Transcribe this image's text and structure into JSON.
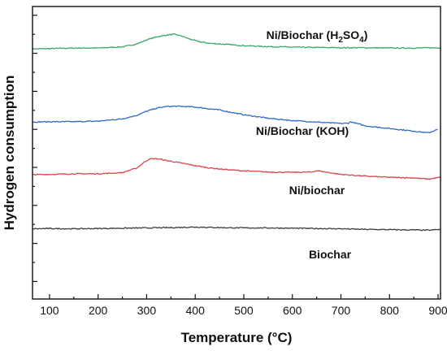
{
  "chart_data": {
    "type": "line",
    "xlabel": "Temperature (°C)",
    "ylabel": "Hydrogen consumption",
    "xlim": [
      65,
      905
    ],
    "ylim": [
      0,
      100
    ],
    "x_ticks": [
      100,
      200,
      300,
      400,
      500,
      600,
      700,
      800,
      900
    ],
    "y_ticks": [
      6,
      19,
      32,
      45,
      58,
      71,
      84,
      97
    ],
    "y_tick_labels_shown": false,
    "grid": false,
    "legend": "none",
    "series": [
      {
        "name": "Ni/Biochar (H2SO4)",
        "label_parts": [
          "Ni/Biochar (H",
          "2",
          "SO",
          "4",
          ")"
        ],
        "color": "#3aa86a",
        "x": [
          65,
          100,
          150,
          200,
          250,
          280,
          300,
          320,
          340,
          355,
          370,
          390,
          410,
          430,
          460,
          500,
          550,
          600,
          650,
          700,
          750,
          800,
          850,
          905
        ],
        "y": [
          85.5,
          85.6,
          85.8,
          85.8,
          86.2,
          87.2,
          88.6,
          89.6,
          90.2,
          90.5,
          90.0,
          88.8,
          87.9,
          87.4,
          87.1,
          86.6,
          86.3,
          86.1,
          86.0,
          85.9,
          85.9,
          85.8,
          85.8,
          85.9
        ]
      },
      {
        "name": "Ni/Biochar (KOH)",
        "label_parts": [
          "Ni/Biochar (KOH)"
        ],
        "color": "#2f6bc4",
        "x": [
          65,
          100,
          150,
          200,
          250,
          280,
          300,
          320,
          340,
          360,
          380,
          400,
          420,
          450,
          500,
          550,
          600,
          650,
          700,
          715,
          720,
          750,
          800,
          850,
          880,
          900
        ],
        "y": [
          60.5,
          60.6,
          60.6,
          60.8,
          61.6,
          62.8,
          64.2,
          65.2,
          65.8,
          65.9,
          65.8,
          65.6,
          65.2,
          64.6,
          63.0,
          61.8,
          61.0,
          60.5,
          60.0,
          60.1,
          60.6,
          59.2,
          58.3,
          57.4,
          56.8,
          58.0
        ]
      },
      {
        "name": "Ni/biochar",
        "label_parts": [
          "Ni/biochar"
        ],
        "color": "#d9464d",
        "x": [
          65,
          100,
          150,
          200,
          250,
          280,
          295,
          305,
          320,
          340,
          360,
          380,
          400,
          430,
          460,
          500,
          550,
          600,
          640,
          650,
          680,
          700,
          750,
          800,
          850,
          880,
          905
        ],
        "y": [
          42.5,
          42.6,
          42.8,
          42.8,
          43.2,
          44.8,
          46.8,
          47.8,
          48.0,
          47.4,
          46.8,
          46.2,
          45.6,
          44.8,
          44.3,
          43.8,
          43.4,
          43.3,
          43.4,
          43.9,
          43.1,
          42.6,
          42.0,
          41.6,
          41.4,
          41.0,
          41.6
        ]
      },
      {
        "name": "Biochar",
        "label_parts": [
          "Biochar"
        ],
        "color": "#3c3c3c",
        "x": [
          65,
          100,
          150,
          200,
          250,
          300,
          350,
          400,
          450,
          500,
          550,
          600,
          650,
          700,
          750,
          800,
          850,
          880,
          905
        ],
        "y": [
          24.0,
          24.1,
          24.0,
          24.1,
          24.2,
          24.3,
          24.4,
          24.6,
          24.4,
          24.3,
          24.3,
          24.2,
          24.1,
          24.0,
          23.8,
          23.7,
          23.6,
          23.5,
          23.8
        ]
      }
    ]
  }
}
